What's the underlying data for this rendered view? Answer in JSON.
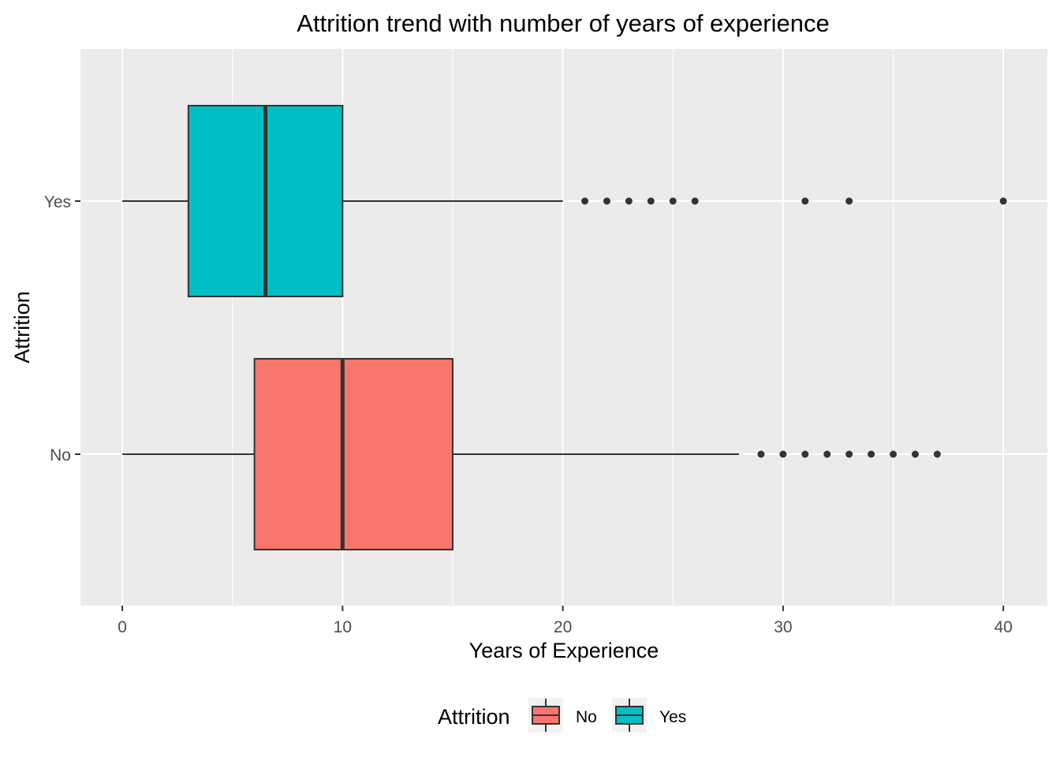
{
  "chart_data": {
    "type": "boxplot",
    "orientation": "horizontal",
    "title": "Attrition trend with number of years of experience",
    "xlabel": "Years of Experience",
    "ylabel": "Attrition",
    "xlim": [
      -1.9,
      42.0
    ],
    "x_ticks": [
      0,
      10,
      20,
      30,
      40
    ],
    "x_tick_labels": [
      "0",
      "10",
      "20",
      "30",
      "40"
    ],
    "categories": [
      "No",
      "Yes"
    ],
    "grid": true,
    "legend": {
      "title": "Attrition",
      "position": "bottom",
      "entries": [
        "No",
        "Yes"
      ]
    },
    "series": [
      {
        "name": "No",
        "color": "#F8766D",
        "min": 0,
        "q1": 6,
        "median": 10,
        "q3": 15,
        "max": 28,
        "outliers": [
          29,
          30,
          31,
          32,
          33,
          34,
          35,
          36,
          37
        ]
      },
      {
        "name": "Yes",
        "color": "#00BFC4",
        "min": 0,
        "q1": 3,
        "median": 6.5,
        "q3": 10,
        "max": 20,
        "outliers": [
          21,
          22,
          23,
          24,
          25,
          26,
          31,
          33,
          40
        ]
      }
    ]
  }
}
